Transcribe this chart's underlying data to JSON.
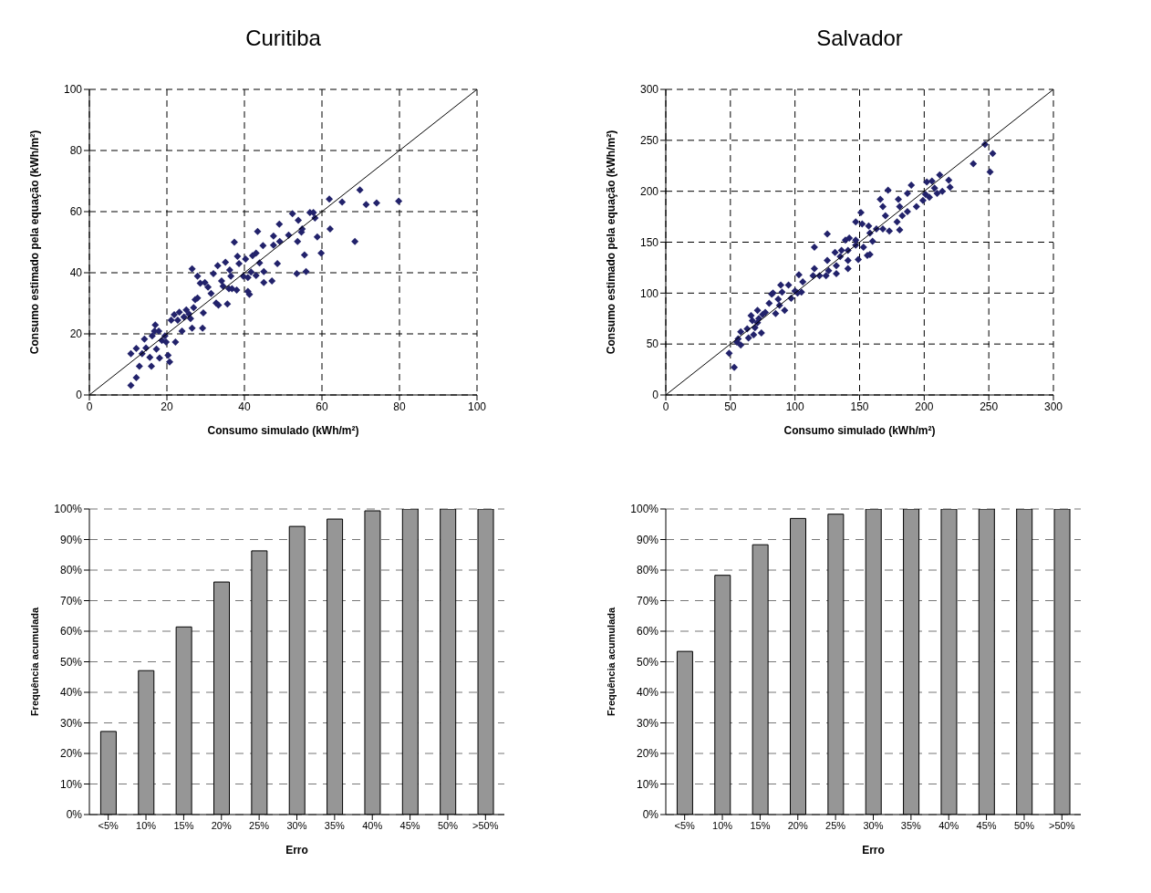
{
  "chart_data": [
    {
      "type": "scatter",
      "title": "Curitiba",
      "xlabel": "Consumo simulado (kWh/m²)",
      "ylabel": "Consumo estimado pela equação (kWh/m²)",
      "xlim": [
        0,
        100
      ],
      "ylim": [
        0,
        100
      ],
      "xticks": [
        0,
        20,
        40,
        60,
        80,
        100
      ],
      "yticks": [
        0,
        20,
        40,
        60,
        80,
        100
      ],
      "grid": true,
      "marker": "diamond",
      "series": [
        {
          "type": "scatter",
          "color": "#22226b",
          "x": [
            10.7,
            12.1,
            10.7,
            12.1,
            12.9,
            13.6,
            14.2,
            14.6,
            15.6,
            16.0,
            16.2,
            17.0,
            16.8,
            17.3,
            17.9,
            18.1,
            18.7,
            19.5,
            19.8,
            20.3,
            20.7,
            21.1,
            21.9,
            22.2,
            22.8,
            23.2,
            23.9,
            24.4,
            25.0,
            25.7,
            26.1,
            26.5,
            26.5,
            26.9,
            27.3,
            27.9,
            27.9,
            28.6,
            29.4,
            29.2,
            29.8,
            30.6,
            31.4,
            32.0,
            32.7,
            33.1,
            33.3,
            34.1,
            34.5,
            35.1,
            35.6,
            36.0,
            36.2,
            36.5,
            36.8,
            37.4,
            38.0,
            38.2,
            38.6,
            39.7,
            40.3,
            40.9,
            41.3,
            40.9,
            41.7,
            42.1,
            43.0,
            43.4,
            43.9,
            43.0,
            45.0,
            45.0,
            44.8,
            47.1,
            47.5,
            47.5,
            48.5,
            49.0,
            49.1,
            51.4,
            52.4,
            53.5,
            53.7,
            53.9,
            54.7,
            54.9,
            55.5,
            55.9,
            56.9,
            57.8,
            58.2,
            58.8,
            59.8,
            61.9,
            62.1,
            65.2,
            68.5,
            69.8,
            71.4,
            74.1,
            79.8
          ],
          "values": [
            3.1,
            5.7,
            13.5,
            15.2,
            9.4,
            13.5,
            18.3,
            15.4,
            12.3,
            9.4,
            19.3,
            22.9,
            20.9,
            15.0,
            20.9,
            12.1,
            17.8,
            19.3,
            17.3,
            13.0,
            10.8,
            24.5,
            26.3,
            17.3,
            24.5,
            27.1,
            20.9,
            25.5,
            27.8,
            26.5,
            25.0,
            41.3,
            21.9,
            28.6,
            31.2,
            31.7,
            38.9,
            36.6,
            26.9,
            21.9,
            36.8,
            35.3,
            33.2,
            39.7,
            30.1,
            42.3,
            29.4,
            37.3,
            35.6,
            43.4,
            29.8,
            34.8,
            40.9,
            38.9,
            34.8,
            50.0,
            34.3,
            45.4,
            43.0,
            38.9,
            44.5,
            33.9,
            32.9,
            38.4,
            40.2,
            45.6,
            46.4,
            53.5,
            43.2,
            39.1,
            40.4,
            36.8,
            48.9,
            37.3,
            52.0,
            49.0,
            43.0,
            55.9,
            50.2,
            52.3,
            59.3,
            39.7,
            50.2,
            57.2,
            53.3,
            54.3,
            45.8,
            40.4,
            59.7,
            59.7,
            57.9,
            51.7,
            46.4,
            64.1,
            54.3,
            63.1,
            50.2,
            67.1,
            62.3,
            62.8,
            63.4
          ]
        },
        {
          "type": "line",
          "marker": "none",
          "color": "#000000",
          "x": [
            0,
            100
          ],
          "values": [
            0,
            100
          ]
        }
      ]
    },
    {
      "type": "scatter",
      "title": "Salvador",
      "xlabel": "Consumo simulado (kWh/m²)",
      "ylabel": "Consumo estimado pela equação (kWh/m²)",
      "xlim": [
        0,
        300
      ],
      "ylim": [
        0,
        300
      ],
      "xticks": [
        0,
        50,
        100,
        150,
        200,
        250,
        300
      ],
      "yticks": [
        0,
        50,
        100,
        150,
        200,
        250,
        300
      ],
      "grid": true,
      "marker": "diamond",
      "series": [
        {
          "type": "scatter",
          "color": "#22226b",
          "x": [
            49,
            53,
            55,
            56,
            58,
            58,
            63,
            64,
            66,
            67,
            68,
            69,
            71,
            71,
            72,
            74,
            75,
            77,
            80,
            82,
            83,
            85,
            87,
            88,
            89,
            90,
            92,
            95,
            97,
            100,
            102,
            103,
            105,
            106,
            114,
            115,
            115,
            119,
            124,
            125,
            125,
            126,
            131,
            132,
            132,
            135,
            136,
            139,
            141,
            141,
            141,
            142,
            147,
            147,
            149,
            151,
            147,
            152,
            153,
            156,
            157,
            158,
            158,
            160,
            163,
            166,
            168,
            168,
            170,
            172,
            173,
            180,
            179,
            181,
            181,
            183,
            187,
            187,
            190,
            194,
            199,
            201,
            202,
            204,
            206,
            208,
            210,
            212,
            214,
            219,
            220,
            238,
            247,
            253,
            251
          ],
          "values": [
            41,
            27,
            52,
            55,
            49,
            62,
            65,
            56,
            78,
            73,
            59,
            66,
            83,
            71,
            75,
            61,
            79,
            81,
            90,
            99,
            100,
            80,
            94,
            88,
            108,
            101,
            83,
            108,
            95,
            102,
            100,
            118,
            101,
            111,
            117,
            124,
            145,
            117,
            117,
            158,
            132,
            122,
            140,
            127,
            119,
            136,
            142,
            152,
            142,
            132,
            124,
            154,
            152,
            147,
            133,
            179,
            170,
            168,
            145,
            137,
            166,
            138,
            159,
            151,
            163,
            192,
            163,
            185,
            176,
            201,
            161,
            192,
            170,
            185,
            162,
            176,
            180,
            198,
            206,
            185,
            191,
            197,
            209,
            194,
            210,
            203,
            198,
            216,
            200,
            211,
            204,
            227,
            246,
            237,
            219
          ]
        },
        {
          "type": "line",
          "marker": "none",
          "color": "#000000",
          "x": [
            0,
            300
          ],
          "values": [
            0,
            300
          ]
        }
      ]
    },
    {
      "type": "bar",
      "xlabel": "Erro",
      "ylabel": "Frequência acumulada",
      "categories": [
        "<5%",
        "10%",
        "15%",
        "20%",
        "25%",
        "30%",
        "35%",
        "40%",
        "45%",
        "50%",
        ">50%"
      ],
      "values": [
        27.2,
        47.1,
        61.4,
        76.1,
        86.3,
        94.3,
        96.7,
        99.4,
        100,
        100,
        100
      ],
      "color": "#969696",
      "ylim": [
        0,
        100
      ],
      "yticks": [
        {
          "value": 0,
          "label": "0%"
        },
        {
          "value": 10,
          "label": "10%"
        },
        {
          "value": 20,
          "label": "20%"
        },
        {
          "value": 30,
          "label": "30%"
        },
        {
          "value": 40,
          "label": "40%"
        },
        {
          "value": 50,
          "label": "50%"
        },
        {
          "value": 60,
          "label": "60%"
        },
        {
          "value": 70,
          "label": "70%"
        },
        {
          "value": 80,
          "label": "80%"
        },
        {
          "value": 90,
          "label": "90%"
        },
        {
          "value": 100,
          "label": "100%"
        }
      ],
      "grid": "y"
    },
    {
      "type": "bar",
      "xlabel": "Erro",
      "ylabel": "Frequência acumulada",
      "categories": [
        "<5%",
        "10%",
        "15%",
        "20%",
        "25%",
        "30%",
        "35%",
        "40%",
        "45%",
        "50%",
        ">50%"
      ],
      "values": [
        53.4,
        78.3,
        88.3,
        96.9,
        98.3,
        100,
        100,
        100,
        100,
        100,
        100
      ],
      "color": "#969696",
      "ylim": [
        0,
        100
      ],
      "yticks": [
        {
          "value": 0,
          "label": "0%"
        },
        {
          "value": 10,
          "label": "10%"
        },
        {
          "value": 20,
          "label": "20%"
        },
        {
          "value": 30,
          "label": "30%"
        },
        {
          "value": 40,
          "label": "40%"
        },
        {
          "value": 50,
          "label": "50%"
        },
        {
          "value": 60,
          "label": "60%"
        },
        {
          "value": 70,
          "label": "70%"
        },
        {
          "value": 80,
          "label": "80%"
        },
        {
          "value": 90,
          "label": "90%"
        },
        {
          "value": 100,
          "label": "100%"
        }
      ],
      "grid": "y"
    }
  ]
}
